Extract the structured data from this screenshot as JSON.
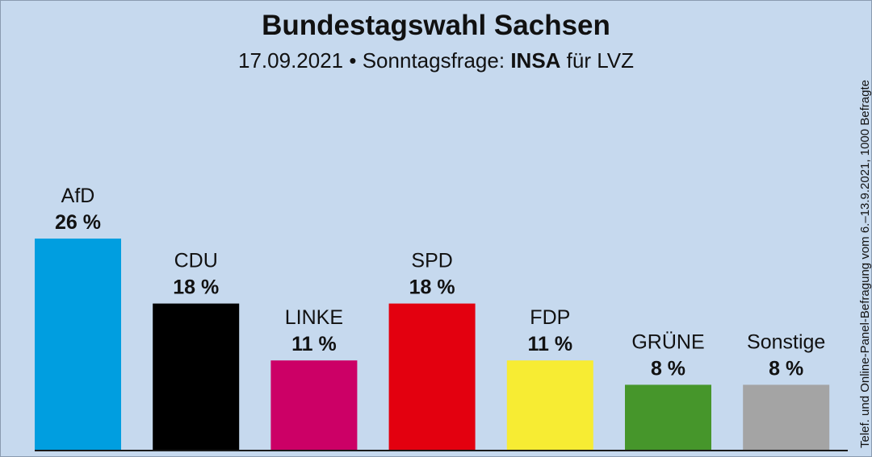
{
  "header": {
    "title": "Bundestagswahl Sachsen",
    "subtitle_date": "17.09.2021",
    "subtitle_sep": "•",
    "subtitle_prefix": "Sonntagsfrage:",
    "subtitle_institute": "INSA",
    "subtitle_suffix": "für LVZ"
  },
  "source_note": "Telef. und Online-Panel-Befragung vom 6.–13.9.2021, 1000 Befragte",
  "chart_data": {
    "type": "bar",
    "title": "Bundestagswahl Sachsen",
    "subtitle": "17.09.2021 • Sonntagsfrage: INSA für LVZ",
    "xlabel": "",
    "ylabel": "",
    "unit": "%",
    "ylim": [
      0,
      26
    ],
    "grid": false,
    "legend": "none",
    "categories": [
      "AfD",
      "CDU",
      "LINKE",
      "SPD",
      "FDP",
      "GRÜNE",
      "Sonstige"
    ],
    "values": [
      26,
      18,
      11,
      18,
      11,
      8,
      8
    ],
    "value_labels": [
      "26 %",
      "18 %",
      "11 %",
      "18 %",
      "11 %",
      "8 %",
      "8 %"
    ],
    "value_label_bold": [
      true,
      true,
      true,
      true,
      true,
      false,
      false
    ],
    "colors": [
      "#009ee0",
      "#000000",
      "#cc0066",
      "#e3000f",
      "#f7ec33",
      "#46962b",
      "#a4a4a4"
    ],
    "annotation": "Telef. und Online-Panel-Befragung vom 6.–13.9.2021, 1000 Befragte"
  }
}
